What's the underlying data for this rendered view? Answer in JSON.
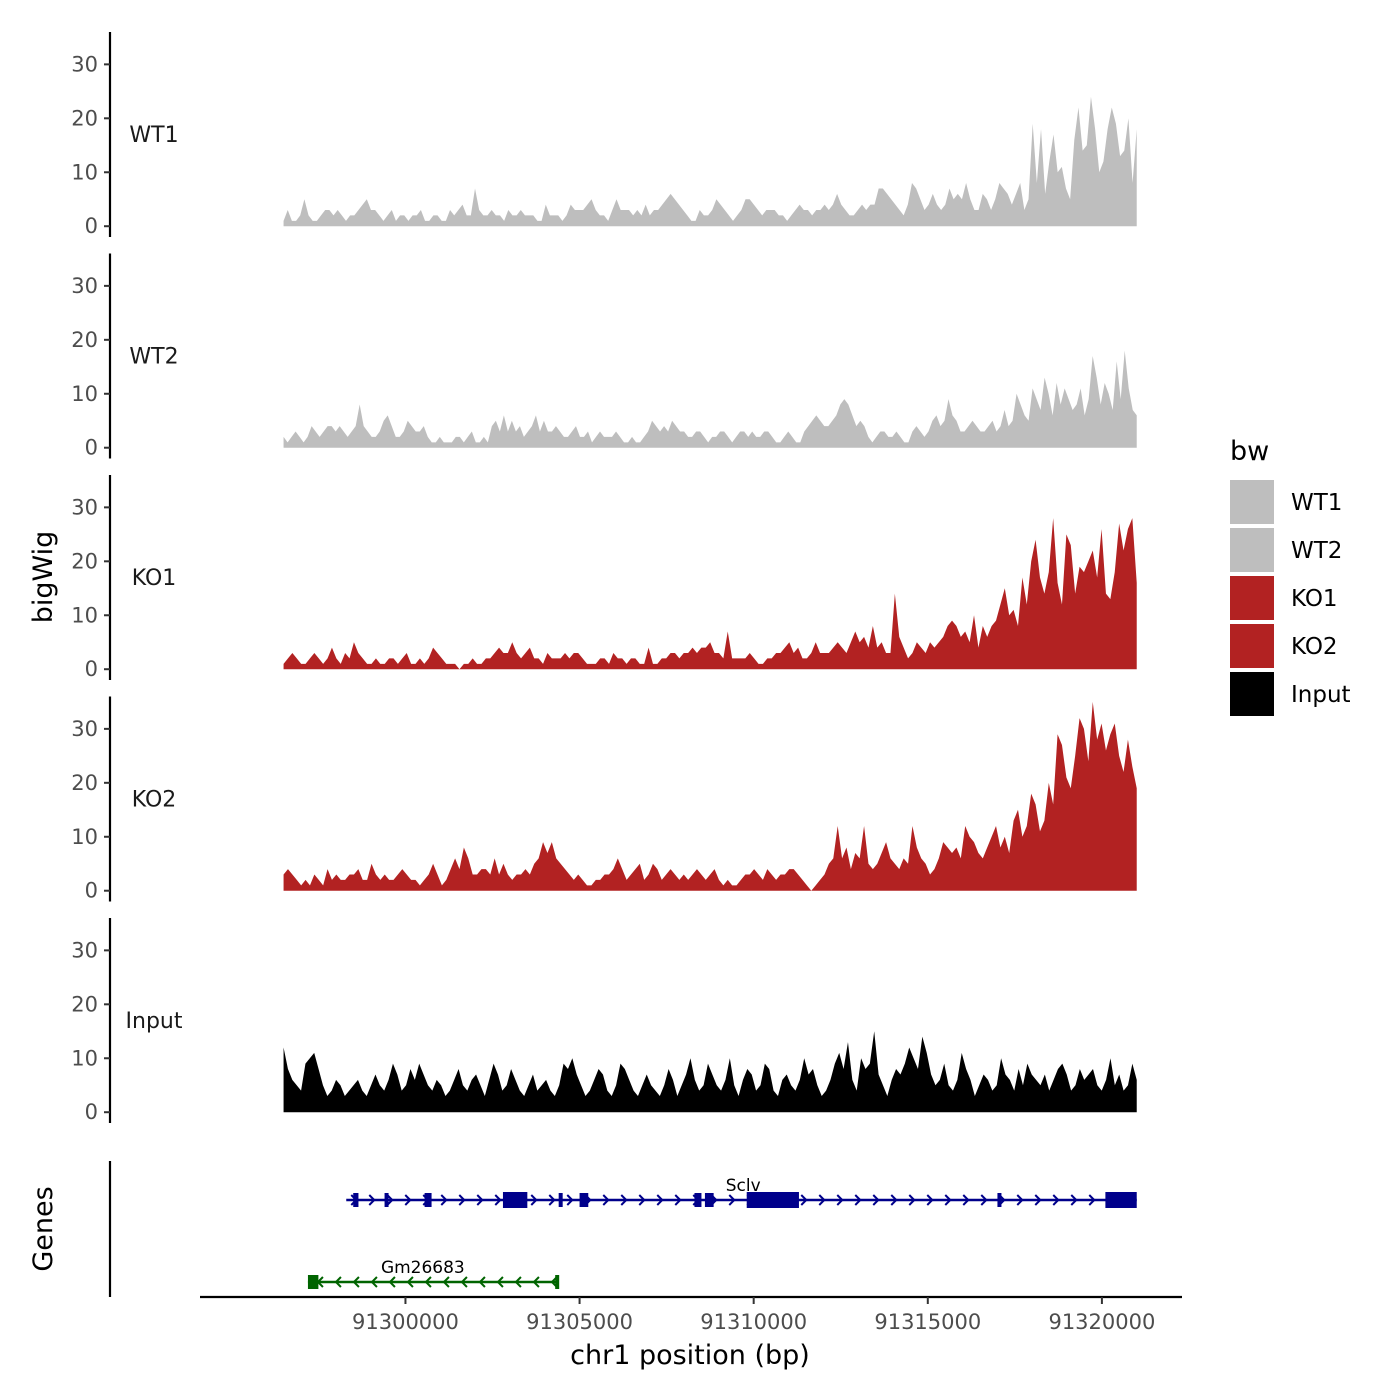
{
  "chart_data": {
    "type": "area",
    "ylabel": "bigWig",
    "genes_label": "Genes",
    "xlabel": "chr1 position (bp)",
    "x_range": [
      91296500,
      91321000
    ],
    "x_axis_lim": [
      91294100,
      91322300
    ],
    "x_ticks": [
      91300000,
      91305000,
      91310000,
      91315000,
      91320000
    ],
    "x_tick_labels": [
      "91300000",
      "91305000",
      "91310000",
      "91315000",
      "91320000"
    ],
    "y_ticks": [
      0,
      10,
      20,
      30
    ],
    "y_tick_labels": [
      "0",
      "10",
      "20",
      "30"
    ],
    "ylim": [
      -2,
      36
    ],
    "legend": {
      "title": "bw",
      "entries": [
        {
          "label": "WT1",
          "color": "#bebebe"
        },
        {
          "label": "WT2",
          "color": "#bebebe"
        },
        {
          "label": "KO1",
          "color": "#b22222"
        },
        {
          "label": "KO2",
          "color": "#b22222"
        },
        {
          "label": "Input",
          "color": "#000000"
        }
      ]
    },
    "series": [
      {
        "name": "WT1",
        "color": "#bebebe",
        "values": [
          1,
          3,
          1,
          1,
          2,
          5,
          2,
          1,
          1,
          2,
          3,
          3,
          2,
          3,
          2,
          1,
          2,
          2,
          3,
          4,
          5,
          3,
          3,
          2,
          1,
          2,
          3,
          1,
          2,
          2,
          1,
          2,
          2,
          3,
          1,
          1,
          2,
          2,
          1,
          1,
          3,
          2,
          3,
          4,
          2,
          2,
          7,
          3,
          2,
          2,
          3,
          2,
          2,
          1,
          3,
          2,
          2,
          3,
          2,
          2,
          2,
          1,
          1,
          4,
          2,
          2,
          2,
          1,
          2,
          4,
          3,
          3,
          3,
          4,
          5,
          3,
          2,
          2,
          1,
          3,
          5,
          3,
          3,
          3,
          2,
          3,
          2,
          4,
          2,
          3,
          3,
          4,
          5,
          6,
          5,
          4,
          3,
          2,
          1,
          1,
          3,
          2,
          2,
          3,
          5,
          4,
          3,
          2,
          1,
          2,
          3,
          5,
          5,
          4,
          3,
          2,
          3,
          3,
          3,
          2,
          2,
          1,
          2,
          3,
          4,
          3,
          3,
          2,
          3,
          3,
          4,
          3,
          4,
          6,
          4,
          3,
          2,
          2,
          3,
          4,
          3,
          4,
          4,
          7,
          7,
          6,
          5,
          4,
          3,
          2,
          4,
          8,
          7,
          5,
          3,
          4,
          6,
          4,
          3,
          4,
          7,
          5,
          6,
          5,
          8,
          5,
          3,
          3,
          6,
          5,
          3,
          5,
          8,
          7,
          6,
          4,
          6,
          8,
          3,
          5,
          19,
          8,
          18,
          6,
          12,
          17,
          10,
          11,
          7,
          5,
          16,
          22,
          14,
          15,
          24,
          18,
          10,
          12,
          18,
          22,
          19,
          13,
          14,
          20,
          8,
          18
        ]
      },
      {
        "name": "WT2",
        "color": "#bebebe",
        "values": [
          2,
          1,
          2,
          3,
          2,
          1,
          2,
          4,
          3,
          2,
          3,
          4,
          4,
          3,
          4,
          3,
          2,
          3,
          4,
          8,
          4,
          3,
          2,
          2,
          3,
          5,
          6,
          4,
          2,
          2,
          3,
          5,
          4,
          3,
          3,
          4,
          2,
          1,
          1,
          2,
          1,
          1,
          1,
          2,
          2,
          1,
          2,
          3,
          1,
          1,
          2,
          1,
          4,
          5,
          3,
          6,
          3,
          5,
          3,
          4,
          2,
          3,
          4,
          6,
          3,
          5,
          3,
          3,
          4,
          3,
          2,
          2,
          3,
          4,
          2,
          2,
          3,
          1,
          2,
          3,
          2,
          2,
          2,
          3,
          2,
          1,
          1,
          2,
          1,
          1,
          2,
          3,
          5,
          4,
          3,
          4,
          3,
          5,
          4,
          3,
          3,
          2,
          2,
          3,
          3,
          2,
          1,
          2,
          2,
          3,
          3,
          2,
          1,
          2,
          3,
          3,
          2,
          3,
          2,
          2,
          3,
          3,
          2,
          1,
          1,
          2,
          3,
          2,
          1,
          1,
          3,
          4,
          5,
          6,
          5,
          4,
          4,
          5,
          6,
          8,
          9,
          8,
          6,
          4,
          5,
          4,
          2,
          1,
          2,
          3,
          3,
          2,
          2,
          3,
          2,
          1,
          1,
          3,
          4,
          3,
          2,
          3,
          5,
          6,
          4,
          5,
          9,
          6,
          5,
          3,
          3,
          4,
          5,
          4,
          3,
          3,
          4,
          5,
          3,
          4,
          7,
          4,
          5,
          10,
          8,
          6,
          5,
          11,
          9,
          7,
          13,
          10,
          6,
          12,
          8,
          11,
          9,
          7,
          8,
          11,
          6,
          9,
          17,
          13,
          8,
          12,
          10,
          7,
          16,
          9,
          18,
          11,
          7,
          6
        ]
      },
      {
        "name": "KO1",
        "color": "#b22222",
        "values": [
          1,
          2,
          3,
          2,
          1,
          1,
          2,
          3,
          2,
          1,
          2,
          4,
          2,
          1,
          3,
          2,
          5,
          3,
          2,
          1,
          1,
          2,
          1,
          1,
          2,
          2,
          1,
          2,
          3,
          1,
          1,
          2,
          1,
          2,
          4,
          3,
          2,
          1,
          1,
          1,
          0,
          1,
          1,
          2,
          1,
          1,
          2,
          2,
          3,
          4,
          3,
          3,
          5,
          3,
          2,
          3,
          4,
          2,
          2,
          1,
          3,
          2,
          2,
          2,
          3,
          2,
          3,
          3,
          2,
          1,
          1,
          1,
          2,
          2,
          1,
          3,
          2,
          2,
          1,
          2,
          2,
          1,
          1,
          4,
          1,
          1,
          2,
          2,
          3,
          3,
          2,
          3,
          3,
          4,
          3,
          4,
          4,
          5,
          3,
          3,
          2,
          7,
          2,
          2,
          2,
          2,
          3,
          2,
          1,
          1,
          2,
          2,
          3,
          3,
          4,
          5,
          3,
          4,
          2,
          2,
          3,
          5,
          3,
          3,
          3,
          4,
          5,
          4,
          3,
          5,
          7,
          5,
          6,
          4,
          8,
          4,
          5,
          3,
          3,
          14,
          6,
          4,
          2,
          3,
          5,
          4,
          3,
          5,
          4,
          5,
          6,
          8,
          9,
          8,
          6,
          7,
          5,
          10,
          4,
          8,
          6,
          8,
          9,
          12,
          15,
          10,
          11,
          8,
          17,
          12,
          20,
          24,
          17,
          14,
          18,
          28,
          16,
          12,
          25,
          23,
          14,
          19,
          18,
          20,
          22,
          17,
          26,
          14,
          13,
          18,
          27,
          22,
          26,
          28,
          16
        ]
      },
      {
        "name": "KO2",
        "color": "#b22222",
        "values": [
          3,
          4,
          3,
          2,
          1,
          2,
          1,
          3,
          2,
          1,
          4,
          2,
          3,
          2,
          2,
          3,
          3,
          4,
          2,
          2,
          5,
          3,
          2,
          3,
          2,
          2,
          3,
          4,
          3,
          2,
          2,
          1,
          2,
          3,
          5,
          3,
          1,
          2,
          4,
          6,
          4,
          8,
          6,
          3,
          3,
          4,
          4,
          3,
          6,
          3,
          5,
          3,
          2,
          3,
          3,
          4,
          3,
          5,
          6,
          9,
          7,
          9,
          6,
          5,
          4,
          3,
          2,
          3,
          2,
          1,
          1,
          2,
          2,
          3,
          3,
          4,
          6,
          4,
          2,
          3,
          4,
          5,
          2,
          3,
          5,
          4,
          2,
          3,
          4,
          3,
          2,
          3,
          2,
          3,
          4,
          3,
          2,
          3,
          4,
          2,
          1,
          2,
          1,
          1,
          2,
          3,
          3,
          4,
          3,
          2,
          4,
          3,
          2,
          3,
          3,
          4,
          4,
          3,
          2,
          1,
          0,
          1,
          2,
          3,
          5,
          6,
          12,
          6,
          8,
          4,
          7,
          6,
          12,
          5,
          4,
          5,
          7,
          9,
          6,
          5,
          4,
          6,
          5,
          12,
          8,
          6,
          5,
          3,
          4,
          6,
          9,
          8,
          7,
          8,
          6,
          12,
          10,
          9,
          7,
          6,
          8,
          10,
          12,
          8,
          10,
          7,
          13,
          15,
          10,
          12,
          18,
          16,
          11,
          13,
          20,
          16,
          29,
          27,
          21,
          19,
          25,
          32,
          30,
          24,
          35,
          28,
          31,
          26,
          29,
          31,
          25,
          22,
          28,
          23,
          19
        ]
      },
      {
        "name": "Input",
        "color": "#000000",
        "values": [
          12,
          8,
          6,
          5,
          4,
          9,
          10,
          11,
          8,
          5,
          3,
          4,
          6,
          5,
          3,
          4,
          5,
          6,
          4,
          3,
          5,
          7,
          5,
          4,
          6,
          9,
          7,
          4,
          5,
          8,
          6,
          9,
          7,
          5,
          4,
          6,
          5,
          3,
          4,
          6,
          8,
          5,
          4,
          6,
          7,
          5,
          3,
          6,
          9,
          7,
          4,
          5,
          8,
          6,
          4,
          3,
          5,
          7,
          4,
          5,
          6,
          4,
          3,
          5,
          9,
          8,
          10,
          7,
          5,
          3,
          4,
          6,
          8,
          7,
          4,
          3,
          5,
          9,
          8,
          6,
          4,
          3,
          5,
          7,
          5,
          4,
          3,
          5,
          8,
          6,
          3,
          5,
          7,
          10,
          6,
          4,
          5,
          9,
          7,
          5,
          4,
          6,
          10,
          5,
          3,
          6,
          8,
          7,
          4,
          5,
          9,
          8,
          4,
          3,
          6,
          7,
          5,
          4,
          6,
          10,
          7,
          8,
          5,
          3,
          4,
          6,
          9,
          11,
          8,
          13,
          6,
          4,
          10,
          8,
          9,
          15,
          7,
          5,
          3,
          6,
          8,
          7,
          9,
          12,
          10,
          8,
          14,
          11,
          7,
          5,
          6,
          9,
          5,
          4,
          6,
          11,
          8,
          6,
          3,
          5,
          7,
          6,
          4,
          5,
          10,
          7,
          6,
          4,
          8,
          5,
          9,
          7,
          6,
          5,
          7,
          4,
          6,
          8,
          9,
          7,
          4,
          5,
          8,
          6,
          7,
          8,
          5,
          4,
          6,
          10,
          5,
          7,
          4,
          5,
          9,
          6
        ]
      }
    ],
    "genes": [
      {
        "name": "Sclv",
        "strand": "+",
        "color": "#00008b",
        "start": 91298300,
        "end": 91321000,
        "label_pos": 91309700,
        "exons": [
          [
            91298500,
            91298650
          ],
          [
            91299400,
            91299450
          ],
          [
            91300550,
            91300750
          ],
          [
            91302800,
            91303500
          ],
          [
            91304400,
            91304500
          ],
          [
            91305000,
            91305250
          ],
          [
            91308300,
            91308500
          ],
          [
            91308600,
            91308850
          ],
          [
            91309800,
            91311300
          ],
          [
            91317000,
            91317100
          ],
          [
            91320100,
            91321000
          ]
        ]
      },
      {
        "name": "Gm26683",
        "strand": "-",
        "color": "#006400",
        "start": 91297200,
        "end": 91304400,
        "label_pos": 91300500,
        "exons": [
          [
            91297200,
            91297500
          ],
          [
            91304300,
            91304400
          ]
        ]
      }
    ]
  }
}
